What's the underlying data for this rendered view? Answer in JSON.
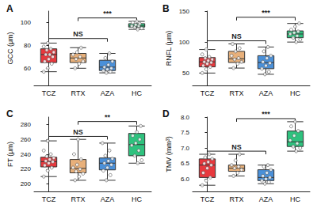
{
  "chart_data": [
    {
      "type": "boxplot",
      "panel": "A",
      "y_label": "GCC (μm)",
      "categories": [
        "TCZ",
        "RTX",
        "AZA",
        "HC"
      ],
      "colors": [
        "#e8383d",
        "#e8b07a",
        "#4a90d9",
        "#2ec27e"
      ],
      "boxes": [
        [
          57,
          65,
          72,
          77,
          82
        ],
        [
          60,
          65,
          69,
          73,
          78
        ],
        [
          56,
          58,
          61,
          67,
          73
        ],
        [
          94,
          96,
          97,
          99,
          101
        ]
      ],
      "points": [
        [
          57,
          60,
          64,
          66,
          68,
          70,
          72,
          72,
          74,
          76,
          77,
          79,
          82
        ],
        [
          60,
          64,
          66,
          68,
          70,
          72,
          74,
          78
        ],
        [
          56,
          57,
          58,
          59,
          60,
          61,
          63,
          66,
          69,
          73
        ],
        [
          94,
          95,
          96,
          97,
          97,
          98,
          99,
          100,
          101
        ]
      ],
      "ylim": [
        45,
        110
      ],
      "yticks": [
        60,
        80,
        100
      ],
      "annotations": [
        {
          "text": "NS",
          "from": "TCZ",
          "to": "AZA",
          "y": 86
        },
        {
          "text": "***",
          "from": "RTX",
          "to": "HC",
          "y": 104
        }
      ]
    },
    {
      "type": "boxplot",
      "panel": "B",
      "y_label": "RNFL (μm)",
      "categories": [
        "TCZ",
        "RTX",
        "AZA",
        "HC"
      ],
      "colors": [
        "#e8383d",
        "#e8b07a",
        "#4a90d9",
        "#2ec27e"
      ],
      "boxes": [
        [
          50,
          60,
          68,
          75,
          88
        ],
        [
          58,
          67,
          73,
          85,
          97
        ],
        [
          48,
          57,
          67,
          78,
          92
        ],
        [
          100,
          107,
          113,
          118,
          130
        ]
      ],
      "points": [
        [
          50,
          56,
          60,
          62,
          65,
          67,
          68,
          70,
          72,
          74,
          76,
          80,
          88
        ],
        [
          58,
          65,
          68,
          72,
          74,
          78,
          85,
          90,
          97
        ],
        [
          48,
          52,
          57,
          62,
          66,
          68,
          74,
          78,
          85,
          92
        ],
        [
          100,
          104,
          107,
          110,
          113,
          115,
          117,
          120,
          125,
          130
        ]
      ],
      "ylim": [
        30,
        150
      ],
      "yticks": [
        50,
        100,
        150
      ],
      "annotations": [
        {
          "text": "NS",
          "from": "TCZ",
          "to": "AZA",
          "y": 102
        },
        {
          "text": "***",
          "from": "RTX",
          "to": "HC",
          "y": 140
        }
      ]
    },
    {
      "type": "boxplot",
      "panel": "C",
      "y_label": "FT (μm)",
      "categories": [
        "TCZ",
        "RTX",
        "AZA",
        "HC"
      ],
      "colors": [
        "#e8383d",
        "#e8b07a",
        "#4a90d9",
        "#2ec27e"
      ],
      "boxes": [
        [
          210,
          223,
          230,
          236,
          258
        ],
        [
          205,
          215,
          221,
          233,
          260
        ],
        [
          205,
          219,
          228,
          235,
          255
        ],
        [
          228,
          238,
          253,
          268,
          278
        ]
      ],
      "points": [
        [
          210,
          218,
          222,
          225,
          228,
          230,
          231,
          233,
          235,
          237,
          240,
          245,
          258
        ],
        [
          205,
          210,
          214,
          217,
          220,
          222,
          226,
          233,
          240,
          260
        ],
        [
          205,
          212,
          218,
          222,
          226,
          228,
          231,
          234,
          238,
          245,
          255
        ],
        [
          228,
          232,
          238,
          245,
          252,
          255,
          260,
          265,
          270,
          278
        ]
      ],
      "ylim": [
        190,
        290
      ],
      "yticks": [
        200,
        220,
        240,
        260,
        280
      ],
      "annotations": [
        {
          "text": "NS",
          "from": "TCZ",
          "to": "AZA",
          "y": 264
        },
        {
          "text": "**",
          "from": "RTX",
          "to": "HC",
          "y": 284
        }
      ]
    },
    {
      "type": "boxplot",
      "panel": "D",
      "y_label": "TMV (mm³)",
      "categories": [
        "TCZ",
        "RTX",
        "AZA",
        "HC"
      ],
      "colors": [
        "#e8383d",
        "#e8b07a",
        "#4a90d9",
        "#2ec27e"
      ],
      "boxes": [
        [
          5.8,
          6.05,
          6.45,
          6.65,
          6.8
        ],
        [
          6.1,
          6.25,
          6.35,
          6.45,
          6.8
        ],
        [
          5.85,
          5.95,
          6.05,
          6.3,
          6.45
        ],
        [
          6.9,
          7.05,
          7.2,
          7.55,
          7.85
        ]
      ],
      "points": [
        [
          5.8,
          5.95,
          6.05,
          6.2,
          6.35,
          6.45,
          6.5,
          6.55,
          6.65,
          6.7,
          6.8
        ],
        [
          6.1,
          6.2,
          6.3,
          6.35,
          6.4,
          6.45,
          6.6,
          6.8
        ],
        [
          5.85,
          5.9,
          5.95,
          6.0,
          6.05,
          6.1,
          6.2,
          6.3,
          6.4,
          6.45
        ],
        [
          6.9,
          7.0,
          7.05,
          7.15,
          7.25,
          7.4,
          7.55,
          7.7,
          7.85
        ]
      ],
      "ylim": [
        5.6,
        8.0
      ],
      "yticks": [
        {
          "value": 6,
          "label": "6.0"
        },
        {
          "value": 6.5,
          "label": "6.5"
        },
        {
          "value": 7,
          "label": "7.0"
        },
        {
          "value": 7.5,
          "label": "7.5"
        },
        {
          "value": 8,
          "label": "8.0"
        }
      ],
      "annotations": [
        {
          "text": "NS",
          "from": "TCZ",
          "to": "AZA",
          "y": 6.9
        },
        {
          "text": "***",
          "from": "RTX",
          "to": "HC",
          "y": 7.95
        }
      ]
    }
  ]
}
